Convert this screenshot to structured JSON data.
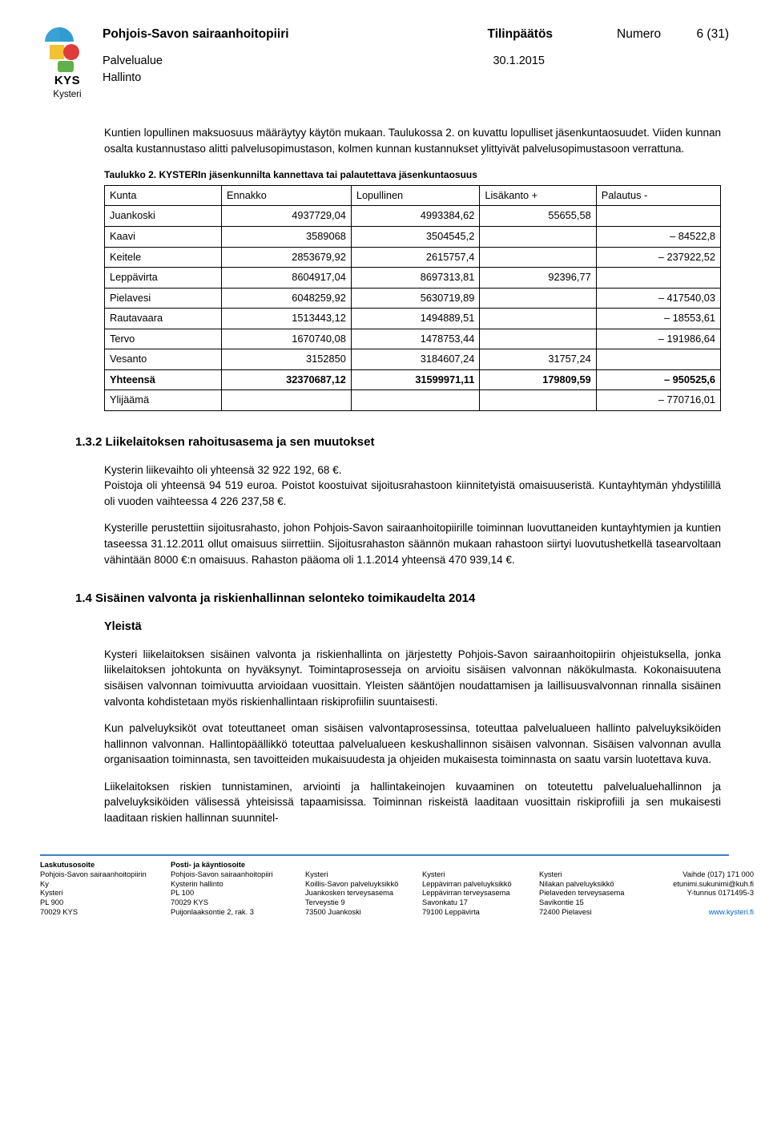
{
  "header": {
    "org": "Pohjois-Savon sairaanhoitopiiri",
    "doc_type": "Tilinpäätös",
    "numero_label": "Numero",
    "page_num": "6 (31)",
    "palvelualue": "Palvelualue",
    "hallinto": "Hallinto",
    "date": "30.1.2015",
    "logo_text": "KYS",
    "logo_sub": "Kysteri"
  },
  "intro": "Kuntien lopullinen maksuosuus määräytyy käytön mukaan. Taulukossa 2. on kuvattu lopulliset jäsenkuntaosuudet. Viiden kunnan osalta kustannustaso alitti palvelusopimustason, kolmen kunnan kustannukset ylittyivät palvelusopimustasoon verrattuna.",
  "table": {
    "caption": "Taulukko 2. KYSTERIn jäsenkunnilta kannettava tai palautettava jäsenkuntaosuus",
    "columns": [
      "Kunta",
      "Ennakko",
      "Lopullinen",
      "Lisäkanto +",
      "Palautus -"
    ],
    "rows": [
      {
        "label": "Juankoski",
        "ennakko": "4937729,04",
        "lopullinen": "4993384,62",
        "lisa": "55655,58",
        "palautus": ""
      },
      {
        "label": "Kaavi",
        "ennakko": "3589068",
        "lopullinen": "3504545,2",
        "lisa": "",
        "palautus": "– 84522,8"
      },
      {
        "label": "Keitele",
        "ennakko": "2853679,92",
        "lopullinen": "2615757,4",
        "lisa": "",
        "palautus": "– 237922,52"
      },
      {
        "label": "Leppävirta",
        "ennakko": "8604917,04",
        "lopullinen": "8697313,81",
        "lisa": "92396,77",
        "palautus": ""
      },
      {
        "label": "Pielavesi",
        "ennakko": "6048259,92",
        "lopullinen": "5630719,89",
        "lisa": "",
        "palautus": "– 417540,03"
      },
      {
        "label": "Rautavaara",
        "ennakko": "1513443,12",
        "lopullinen": "1494889,51",
        "lisa": "",
        "palautus": "– 18553,61"
      },
      {
        "label": "Tervo",
        "ennakko": "1670740,08",
        "lopullinen": "1478753,44",
        "lisa": "",
        "palautus": "– 191986,64"
      },
      {
        "label": "Vesanto",
        "ennakko": "3152850",
        "lopullinen": "3184607,24",
        "lisa": "31757,24",
        "palautus": ""
      }
    ],
    "total": {
      "label": "Yhteensä",
      "ennakko": "32370687,12",
      "lopullinen": "31599971,11",
      "lisa": "179809,59",
      "palautus": "– 950525,6"
    },
    "surplus": {
      "label": "Ylijäämä",
      "ennakko": "",
      "lopullinen": "",
      "lisa": "",
      "palautus": "– 770716,01"
    }
  },
  "s132": {
    "heading": "1.3.2 Liikelaitoksen rahoitusasema ja sen muutokset",
    "p1": "Kysterin liikevaihto oli yhteensä 32 922 192, 68 €.",
    "p2": "Poistoja oli yhteensä 94 519 euroa. Poistot koostuivat sijoitusrahastoon kiinnitetyistä omaisuuseristä. Kuntayhtymän yhdystilillä oli vuoden vaihteessa 4 226 237,58 €.",
    "p3": "Kysterille perustettiin sijoitusrahasto, johon Pohjois-Savon sairaanhoitopiirille toiminnan luovuttaneiden kuntayhtymien ja kuntien taseessa 31.12.2011 ollut omaisuus siirrettiin. Sijoitusrahaston säännön mukaan rahastoon siirtyi luovutushetkellä tasearvoltaan vähintään 8000 €:n omaisuus. Rahaston pääoma oli 1.1.2014 yhteensä 470 939,14 €."
  },
  "s14": {
    "heading": "1.4 Sisäinen valvonta ja riskienhallinnan selonteko toimikaudelta 2014",
    "sub": "Yleistä",
    "p1": "Kysteri liikelaitoksen sisäinen valvonta ja riskienhallinta on järjestetty Pohjois-Savon sairaanhoitopiirin ohjeistuksella, jonka liikelaitoksen johtokunta on hyväksynyt. Toimintaprosesseja on arvioitu sisäisen valvonnan näkökulmasta. Kokonaisuutena sisäisen valvonnan toimivuutta arvioidaan vuosittain. Yleisten sääntöjen noudattamisen ja laillisuusvalvonnan rinnalla sisäinen valvonta kohdistetaan myös riskienhallintaan riskiprofiilin suuntaisesti.",
    "p2": "Kun palveluyksiköt ovat toteuttaneet oman sisäisen valvontaprosessinsa, toteuttaa palvelualueen hallinto palveluyksiköiden hallinnon valvonnan. Hallintopäällikkö toteuttaa palvelualueen keskushallinnon sisäisen valvonnan. Sisäisen valvonnan avulla organisaation toiminnasta, sen tavoitteiden mukaisuudesta ja ohjeiden mukaisesta toiminnasta on saatu varsin luotettava kuva.",
    "p3": "Liikelaitoksen riskien tunnistaminen, arviointi ja hallintakeinojen kuvaaminen on toteutettu palvelualuehallinnon ja palveluyksiköiden välisessä yhteisissä tapaamisissa. Toiminnan riskeistä laaditaan vuosittain riskiprofiili ja sen mukaisesti laaditaan riskien hallinnan suunnitel-"
  },
  "footer": {
    "c1": {
      "title": "Laskutusosoite",
      "l1": "Pohjois-Savon sairaanhoitopiirin Ky",
      "l2": "Kysteri",
      "l3": "PL 900",
      "l4": "70029 KYS"
    },
    "c2": {
      "title": "Posti- ja käyntiosoite",
      "l1": "Pohjois-Savon sairaanhoitopiiri",
      "l2": "Kysterin hallinto",
      "l3": "PL 100",
      "l4": "70029 KYS",
      "l5": "Puijonlaaksontie 2, rak. 3"
    },
    "c3": {
      "l1": "Kysteri",
      "l2": "Koillis-Savon palveluyksikkö",
      "l3": "Juankosken terveysasema",
      "l4": "Terveystie 9",
      "l5": "73500 Juankoski"
    },
    "c4": {
      "l1": "Kysteri",
      "l2": "Leppävirran palveluyksikkö",
      "l3": "Leppävirran terveysasema",
      "l4": "Savonkatu 17",
      "l5": "79100 Leppävirta"
    },
    "c5": {
      "l1": "Kysteri",
      "l2": "Nilakan palveluyksikkö",
      "l3": "Pielaveden terveysasema",
      "l4": "Savikontie 15",
      "l5": "72400 Pielavesi"
    },
    "c6": {
      "l1": "Vaihde (017) 171 000",
      "l2": "etunimi.sukunimi@kuh.fi",
      "l3": "Y-tunnus 0171495-3",
      "link": "www.kysteri.fi"
    }
  },
  "colors": {
    "footer_border": "#3a7fc4",
    "link_color": "#0066cc",
    "logo_blue": "#2f9dd0",
    "logo_yellow": "#f3c233",
    "logo_red": "#e03a3a",
    "logo_green": "#60b04b"
  }
}
